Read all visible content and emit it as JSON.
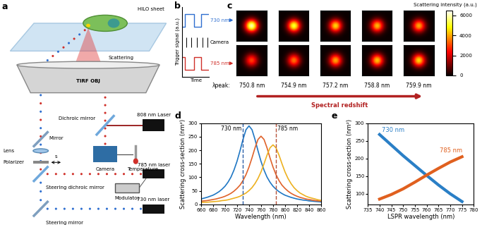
{
  "diagram": {
    "label": "a",
    "texts": {
      "hilo": "HILO sheet",
      "scattering": "Scattering",
      "objective": "TIRF OBJ",
      "laser808": "808 nm Laser",
      "dichroic": "Dichroic mirror",
      "mirror": "Mirror",
      "camera": "Camera",
      "temperature": "Temperature",
      "lens": "Lens",
      "polarizer": "Polarizer",
      "polarization": "s",
      "steering_dichroic": "Steering dichroic mirror",
      "laser785": "785 nm laser",
      "modulator": "Modulator",
      "steering": "Steering mirror",
      "laser730": "730 nm laser"
    }
  },
  "trigger": {
    "label": "b",
    "ylabel": "Trigger signal (a.u.)",
    "xlabel": "Time",
    "signals": [
      {
        "name": "730 nm",
        "color": "#2f6fd0"
      },
      {
        "name": "Camera",
        "color": "#000000"
      },
      {
        "name": "785 nm",
        "color": "#d0302a"
      }
    ]
  },
  "images": {
    "label": "c",
    "colorbar_label": "Scattering intensity (a.u.)",
    "colorbar": {
      "range": [
        0,
        6500
      ],
      "ticks": [
        0,
        2000,
        4000,
        6000
      ]
    },
    "peaks": [
      [
        6000,
        5200,
        4500,
        4200,
        4000
      ],
      [
        3000,
        3500,
        4000,
        4300,
        4500
      ]
    ],
    "peak_label": "λpeak:",
    "peak_labels": [
      "750.8 nm",
      "754.9 nm",
      "757.2 nm",
      "758.8 nm",
      "759.9 nm"
    ],
    "arrow_label": "Spectral redshift"
  },
  "chart_data": [
    {
      "type": "line",
      "label": "d",
      "xlabel": "Wavelength (nm)",
      "ylabel": "Scattering cross-section (nm²)",
      "x": [
        660,
        665,
        670,
        675,
        680,
        685,
        690,
        695,
        700,
        705,
        710,
        715,
        720,
        725,
        730,
        735,
        740,
        745,
        750,
        755,
        760,
        765,
        770,
        775,
        780,
        785,
        790,
        795,
        800,
        805,
        810,
        815,
        820,
        825,
        830,
        835,
        840,
        845,
        850,
        855,
        860
      ],
      "series": [
        {
          "color": "#1f77c4",
          "values": [
            20,
            23,
            26,
            30,
            34,
            40,
            47,
            56,
            67,
            82,
            101,
            127,
            159,
            198,
            240,
            276,
            290,
            276,
            240,
            198,
            159,
            127,
            101,
            82,
            67,
            56,
            47,
            40,
            34,
            30,
            26,
            23,
            20,
            18,
            16,
            15,
            13,
            12,
            11,
            10,
            9
          ]
        },
        {
          "color": "#e0622a",
          "values": [
            12,
            13,
            14,
            16,
            18,
            20,
            23,
            26,
            30,
            35,
            41,
            49,
            59,
            71,
            88,
            110,
            138,
            172,
            209,
            240,
            252,
            240,
            209,
            172,
            138,
            110,
            88,
            71,
            59,
            49,
            41,
            35,
            30,
            26,
            23,
            20,
            18,
            16,
            14,
            13,
            12
          ]
        },
        {
          "color": "#edb120",
          "values": [
            7,
            8,
            8,
            9,
            10,
            11,
            12,
            14,
            15,
            17,
            20,
            23,
            26,
            30,
            36,
            42,
            51,
            62,
            77,
            96,
            120,
            150,
            182,
            209,
            220,
            209,
            182,
            150,
            120,
            96,
            77,
            62,
            51,
            42,
            36,
            30,
            26,
            23,
            20,
            17,
            15
          ]
        }
      ],
      "vlines": [
        {
          "x": 730,
          "label": "730 nm",
          "color": "#2b5ea7",
          "line_style": "dashed"
        },
        {
          "x": 785,
          "label": "785 nm",
          "color": "#b5523b",
          "line_style": "dashed"
        }
      ],
      "xlim": [
        660,
        860
      ],
      "ylim": [
        0,
        300
      ],
      "xticks": [
        660,
        680,
        700,
        720,
        740,
        760,
        780,
        800,
        820,
        840,
        860
      ],
      "yticks": [
        0,
        50,
        100,
        150,
        200,
        250,
        300
      ]
    },
    {
      "type": "line",
      "label": "e",
      "xlabel": "LSPR wavelength (nm)",
      "ylabel": "Scattering cross-section (nm²)",
      "x": [
        740,
        745,
        750,
        755,
        760,
        765,
        770,
        775
      ],
      "series": [
        {
          "name": "730 nm",
          "color": "#2a7fc6",
          "values": [
            268,
            238,
            208,
            180,
            152,
            125,
            100,
            78
          ]
        },
        {
          "name": "785 nm",
          "color": "#e0601f",
          "values": [
            85,
            98,
            114,
            133,
            153,
            172,
            190,
            205
          ]
        }
      ],
      "xlim": [
        735,
        780
      ],
      "ylim": [
        70,
        300
      ],
      "xticks": [
        735,
        740,
        745,
        750,
        755,
        760,
        765,
        770,
        775,
        780
      ],
      "yticks": [
        100,
        150,
        200,
        250,
        300
      ]
    }
  ]
}
